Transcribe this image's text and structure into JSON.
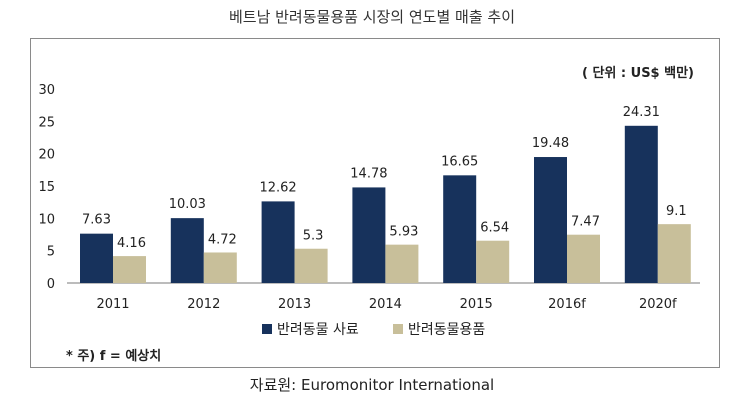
{
  "title": "베트남 반려동물용품 시장의 연도별 매출 추이",
  "source": "자료원: Euromonitor International",
  "colors": {
    "food": "#17325c",
    "goods": "#c8bf9a",
    "frame": "#8a8a8a"
  },
  "chart_data": {
    "type": "bar",
    "unit": "( 단위 : US$ 백만)",
    "note": "* 주)  f = 예상치",
    "categories": [
      "2011",
      "2012",
      "2013",
      "2014",
      "2015",
      "2016f",
      "2020f"
    ],
    "yticks": [
      "0",
      "5",
      "10",
      "15",
      "20",
      "25",
      "30"
    ],
    "ylim": [
      0,
      30
    ],
    "grid": false,
    "legend_position": "bottom",
    "series": [
      {
        "name": "반려동물 사료",
        "values": [
          7.63,
          10.03,
          12.62,
          14.78,
          16.65,
          19.48,
          24.31
        ],
        "labels": [
          "7.63",
          "10.03",
          "12.62",
          "14.78",
          "16.65",
          "19.48",
          "24.31"
        ]
      },
      {
        "name": "반려동물용품",
        "values": [
          4.16,
          4.72,
          5.3,
          5.93,
          6.54,
          7.47,
          9.1
        ],
        "labels": [
          "4.16",
          "4.72",
          "5.3",
          "5.93",
          "6.54",
          "7.47",
          "9.1"
        ]
      }
    ]
  }
}
